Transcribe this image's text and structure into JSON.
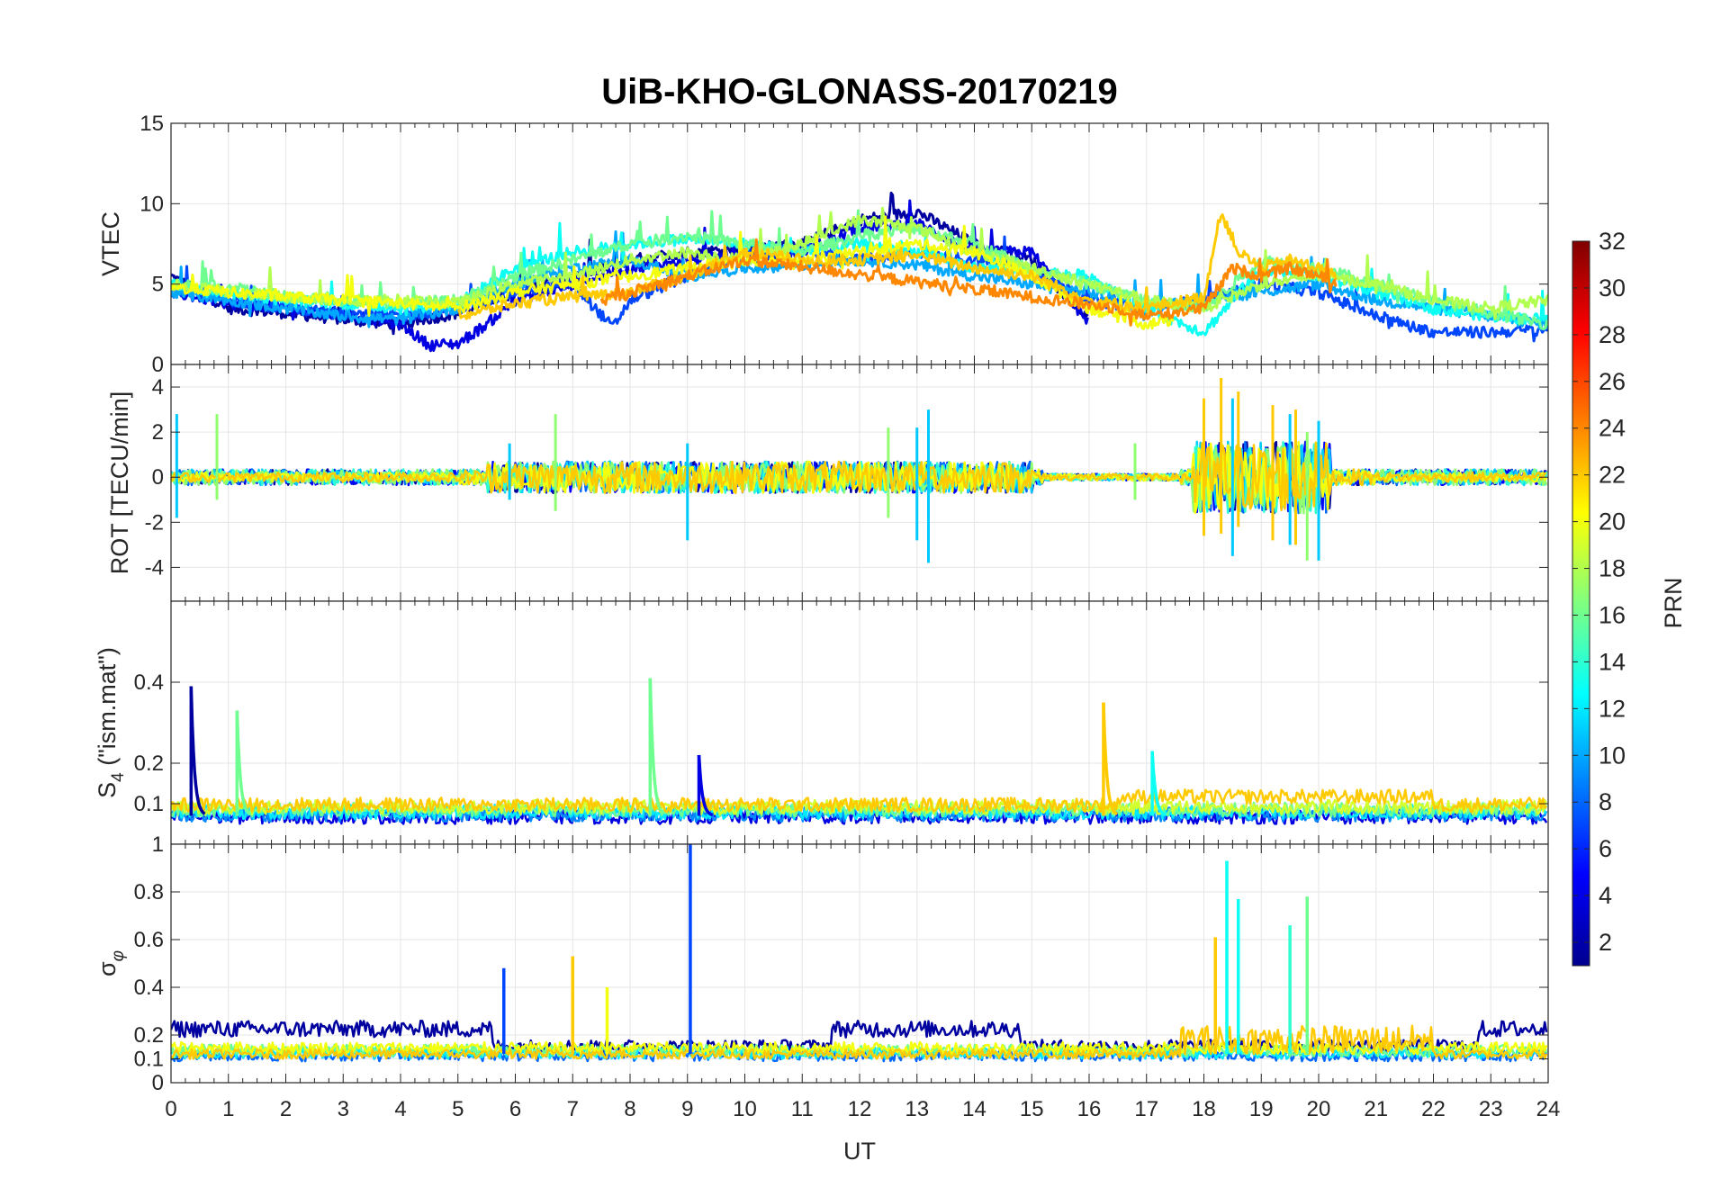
{
  "chart_data": {
    "type": "line",
    "title": "UiB-KHO-GLONASS-20170219",
    "xlabel": "UT",
    "xlim": [
      0,
      24
    ],
    "xticks": [
      "0",
      "1",
      "2",
      "3",
      "4",
      "5",
      "6",
      "7",
      "8",
      "9",
      "10",
      "11",
      "12",
      "13",
      "14",
      "15",
      "16",
      "17",
      "18",
      "19",
      "20",
      "21",
      "22",
      "23",
      "24"
    ],
    "grid": true,
    "colorbar": {
      "label": "PRN",
      "range": [
        1,
        32
      ],
      "ticks": [
        "2",
        "4",
        "6",
        "8",
        "10",
        "12",
        "14",
        "16",
        "18",
        "20",
        "22",
        "24",
        "26",
        "28",
        "30",
        "32"
      ],
      "colormap": "jet",
      "placement": "right"
    },
    "panels": [
      {
        "id": "vtec",
        "ylabel": "VTEC",
        "ylim": [
          0,
          15
        ],
        "yticks": [
          "0",
          "5",
          "10",
          "15"
        ],
        "series": [
          {
            "prn": 2,
            "x": [
              0,
              1,
              2,
              3,
              4,
              5,
              6,
              7,
              8,
              9,
              10,
              11,
              12,
              13,
              14,
              15,
              16
            ],
            "y": [
              5.5,
              3.5,
              3.2,
              2.8,
              2.5,
              3.2,
              4.5,
              5.5,
              6.5,
              7,
              7.2,
              7.5,
              9,
              9.5,
              7.5,
              6.5,
              2.8
            ]
          },
          {
            "prn": 4,
            "x": [
              0,
              1,
              2,
              3,
              4,
              4.5,
              5,
              5.5,
              6,
              7,
              8,
              9,
              10,
              11,
              12,
              13,
              14,
              15,
              16
            ],
            "y": [
              4.5,
              3.8,
              3.5,
              3.2,
              2.5,
              1.2,
              1.3,
              2.5,
              4,
              5,
              6,
              6.5,
              6.8,
              7,
              8.5,
              8.8,
              7,
              7,
              2.5
            ]
          },
          {
            "prn": 7,
            "x": [
              0,
              1,
              2,
              3,
              4,
              5,
              6,
              7,
              7.7,
              8,
              9,
              10,
              11,
              12,
              13,
              14,
              15,
              16,
              17,
              18,
              19,
              20,
              21,
              22,
              23,
              24
            ],
            "y": [
              4.5,
              4,
              3.5,
              3.2,
              3,
              3.5,
              4.5,
              5,
              2.3,
              4,
              5.5,
              6.8,
              7.2,
              6.5,
              7,
              6.5,
              6,
              4,
              3.5,
              4,
              5,
              4.5,
              3,
              2,
              2,
              2.2
            ]
          },
          {
            "prn": 10,
            "x": [
              0,
              1,
              2,
              3,
              4,
              5,
              6,
              7,
              8,
              9,
              10,
              11,
              12,
              13,
              14,
              15,
              16,
              17,
              18,
              19,
              20,
              21,
              22,
              23,
              24
            ],
            "y": [
              4.5,
              4,
              3.5,
              3,
              2.8,
              3.5,
              5,
              6,
              6.5,
              5.5,
              6,
              6.2,
              6.5,
              6.2,
              5.5,
              5,
              4.5,
              3.5,
              4,
              4.5,
              5,
              4,
              3.5,
              3,
              2.5
            ]
          },
          {
            "prn": 13,
            "x": [
              0,
              1,
              2,
              3,
              4,
              5,
              6,
              7,
              8,
              9,
              10,
              11,
              12,
              13,
              14,
              15,
              16,
              17,
              18,
              19,
              20,
              21,
              22,
              23,
              24
            ],
            "y": [
              5,
              4.5,
              4,
              3.8,
              3.5,
              3.8,
              6,
              7,
              7.5,
              7.8,
              7.5,
              7,
              7.5,
              7,
              6,
              5.8,
              5.5,
              3.5,
              2,
              6,
              5.5,
              4.5,
              3.5,
              3,
              2.8
            ]
          },
          {
            "prn": 16,
            "x": [
              0,
              1,
              2,
              3,
              4,
              5,
              6,
              7,
              8,
              9,
              10,
              11,
              12,
              13,
              14,
              15,
              16,
              17,
              18,
              19,
              20,
              21,
              22,
              23,
              24
            ],
            "y": [
              5,
              4.8,
              4.2,
              4,
              3.8,
              4,
              5.5,
              6.5,
              7.5,
              8,
              7.5,
              7,
              8,
              8.5,
              7.5,
              6,
              5,
              4,
              3.5,
              6.5,
              6,
              5,
              4,
              3.2,
              2.5
            ]
          },
          {
            "prn": 18,
            "x": [
              0,
              1,
              2,
              3,
              4,
              5,
              6,
              7,
              8,
              9,
              10,
              11,
              12,
              13,
              14,
              15,
              16,
              17,
              18,
              19,
              20,
              21,
              22,
              23,
              24
            ],
            "y": [
              5,
              4.5,
              4.2,
              4,
              4,
              3.8,
              5,
              5.5,
              6.5,
              7,
              6.5,
              7.5,
              9,
              8.5,
              7,
              6,
              5,
              4,
              3.5,
              5,
              5.5,
              5,
              4,
              3.5,
              4
            ]
          },
          {
            "prn": 20,
            "x": [
              0,
              1,
              2,
              3,
              4,
              5,
              6,
              7,
              8,
              9,
              10,
              11,
              12,
              13,
              14,
              15,
              16,
              17,
              17.5
            ],
            "y": [
              4.8,
              4.5,
              4.2,
              4,
              3.8,
              3.5,
              4.5,
              5,
              5.5,
              6,
              6.5,
              6.5,
              7,
              7.5,
              7,
              5.5,
              3.5,
              2.5,
              2.8
            ]
          },
          {
            "prn": 22,
            "x": [
              5,
              6,
              7,
              8,
              9,
              10,
              11,
              12,
              13,
              14,
              15,
              16,
              17,
              18,
              18.3,
              18.6,
              19,
              19.5,
              20,
              20.3
            ],
            "y": [
              3,
              3.8,
              4.2,
              4.5,
              5.5,
              7,
              6.5,
              6.5,
              6.8,
              6,
              5.5,
              4,
              3.5,
              4.2,
              9.5,
              7,
              6,
              6.5,
              6,
              5.5
            ]
          },
          {
            "prn": 24,
            "x": [
              7.5,
              8,
              9,
              10,
              10.5,
              16.5,
              17,
              18,
              18.5,
              19,
              19.5,
              20,
              20.3
            ],
            "y": [
              4,
              4.5,
              5.5,
              6.5,
              6.3,
              3.5,
              3,
              3.5,
              6,
              5.5,
              6,
              5.5,
              5
            ]
          }
        ]
      },
      {
        "id": "rot",
        "ylabel": "ROT [TECU/min]",
        "ylim": [
          -5.5,
          5
        ],
        "yticks": [
          "-4",
          "-2",
          "0",
          "2",
          "4"
        ],
        "spikes": [
          {
            "prn": 11,
            "x": [
              0.1,
              5.9,
              9,
              13,
              13.2,
              18.5,
              19.5,
              20
            ],
            "up": [
              2.8,
              1.5,
              1.5,
              2.2,
              3,
              3.5,
              2.8,
              2.5
            ],
            "down": [
              -1.8,
              -1,
              -2.8,
              -2.8,
              -3.8,
              -3.5,
              -3,
              -3.7
            ]
          },
          {
            "prn": 17,
            "x": [
              0.8,
              6.7,
              12.5,
              16.8,
              19.8
            ],
            "up": [
              2.8,
              2.8,
              2.2,
              1.5,
              2
            ],
            "down": [
              -1,
              -1.5,
              -1.8,
              -1,
              -3.7
            ]
          },
          {
            "prn": 22,
            "x": [
              18,
              18.3,
              18.6,
              19.2,
              19.6
            ],
            "up": [
              3.5,
              4.4,
              3.8,
              3.2,
              3
            ],
            "down": [
              -2.6,
              -2.5,
              -2.2,
              -2.8,
              -3
            ]
          }
        ]
      },
      {
        "id": "s4",
        "ylabel": "S₄ (\"ism.mat\")",
        "ylabel_main": "S",
        "ylabel_sub": "4",
        "ylabel_rest": " (\"ism.mat\")",
        "ylim": [
          0,
          0.6
        ],
        "yticks": [
          "0.1",
          "0.2",
          "0.4"
        ],
        "spikes": [
          {
            "prn": 2,
            "x": 0.35,
            "peak": 0.39
          },
          {
            "prn": 16,
            "x": 1.15,
            "peak": 0.33
          },
          {
            "prn": 16,
            "x": 8.35,
            "peak": 0.41
          },
          {
            "prn": 4,
            "x": 9.2,
            "peak": 0.22
          },
          {
            "prn": 22,
            "x": 16.25,
            "peak": 0.35
          },
          {
            "prn": 13,
            "x": 17.1,
            "peak": 0.23
          }
        ]
      },
      {
        "id": "sigma_phi",
        "ylabel": "σφ",
        "ylabel_main": "σ",
        "ylabel_sub": "φ",
        "ylim": [
          0,
          1
        ],
        "yticks": [
          "0",
          "0.1",
          "0.2",
          "0.4",
          "0.6",
          "0.8",
          "1"
        ],
        "spikes": [
          {
            "prn": 7,
            "x": 5.8,
            "peak": 0.48
          },
          {
            "prn": 22,
            "x": 7.0,
            "peak": 0.53
          },
          {
            "prn": 20,
            "x": 7.6,
            "peak": 0.4
          },
          {
            "prn": 7,
            "x": 9.05,
            "peak": 1.0
          },
          {
            "prn": 13,
            "x": 18.4,
            "peak": 0.93
          },
          {
            "prn": 22,
            "x": 18.2,
            "peak": 0.61
          },
          {
            "prn": 13,
            "x": 18.6,
            "peak": 0.77
          },
          {
            "prn": 14,
            "x": 19.5,
            "peak": 0.66
          },
          {
            "prn": 16,
            "x": 19.8,
            "peak": 0.78
          }
        ]
      }
    ]
  }
}
